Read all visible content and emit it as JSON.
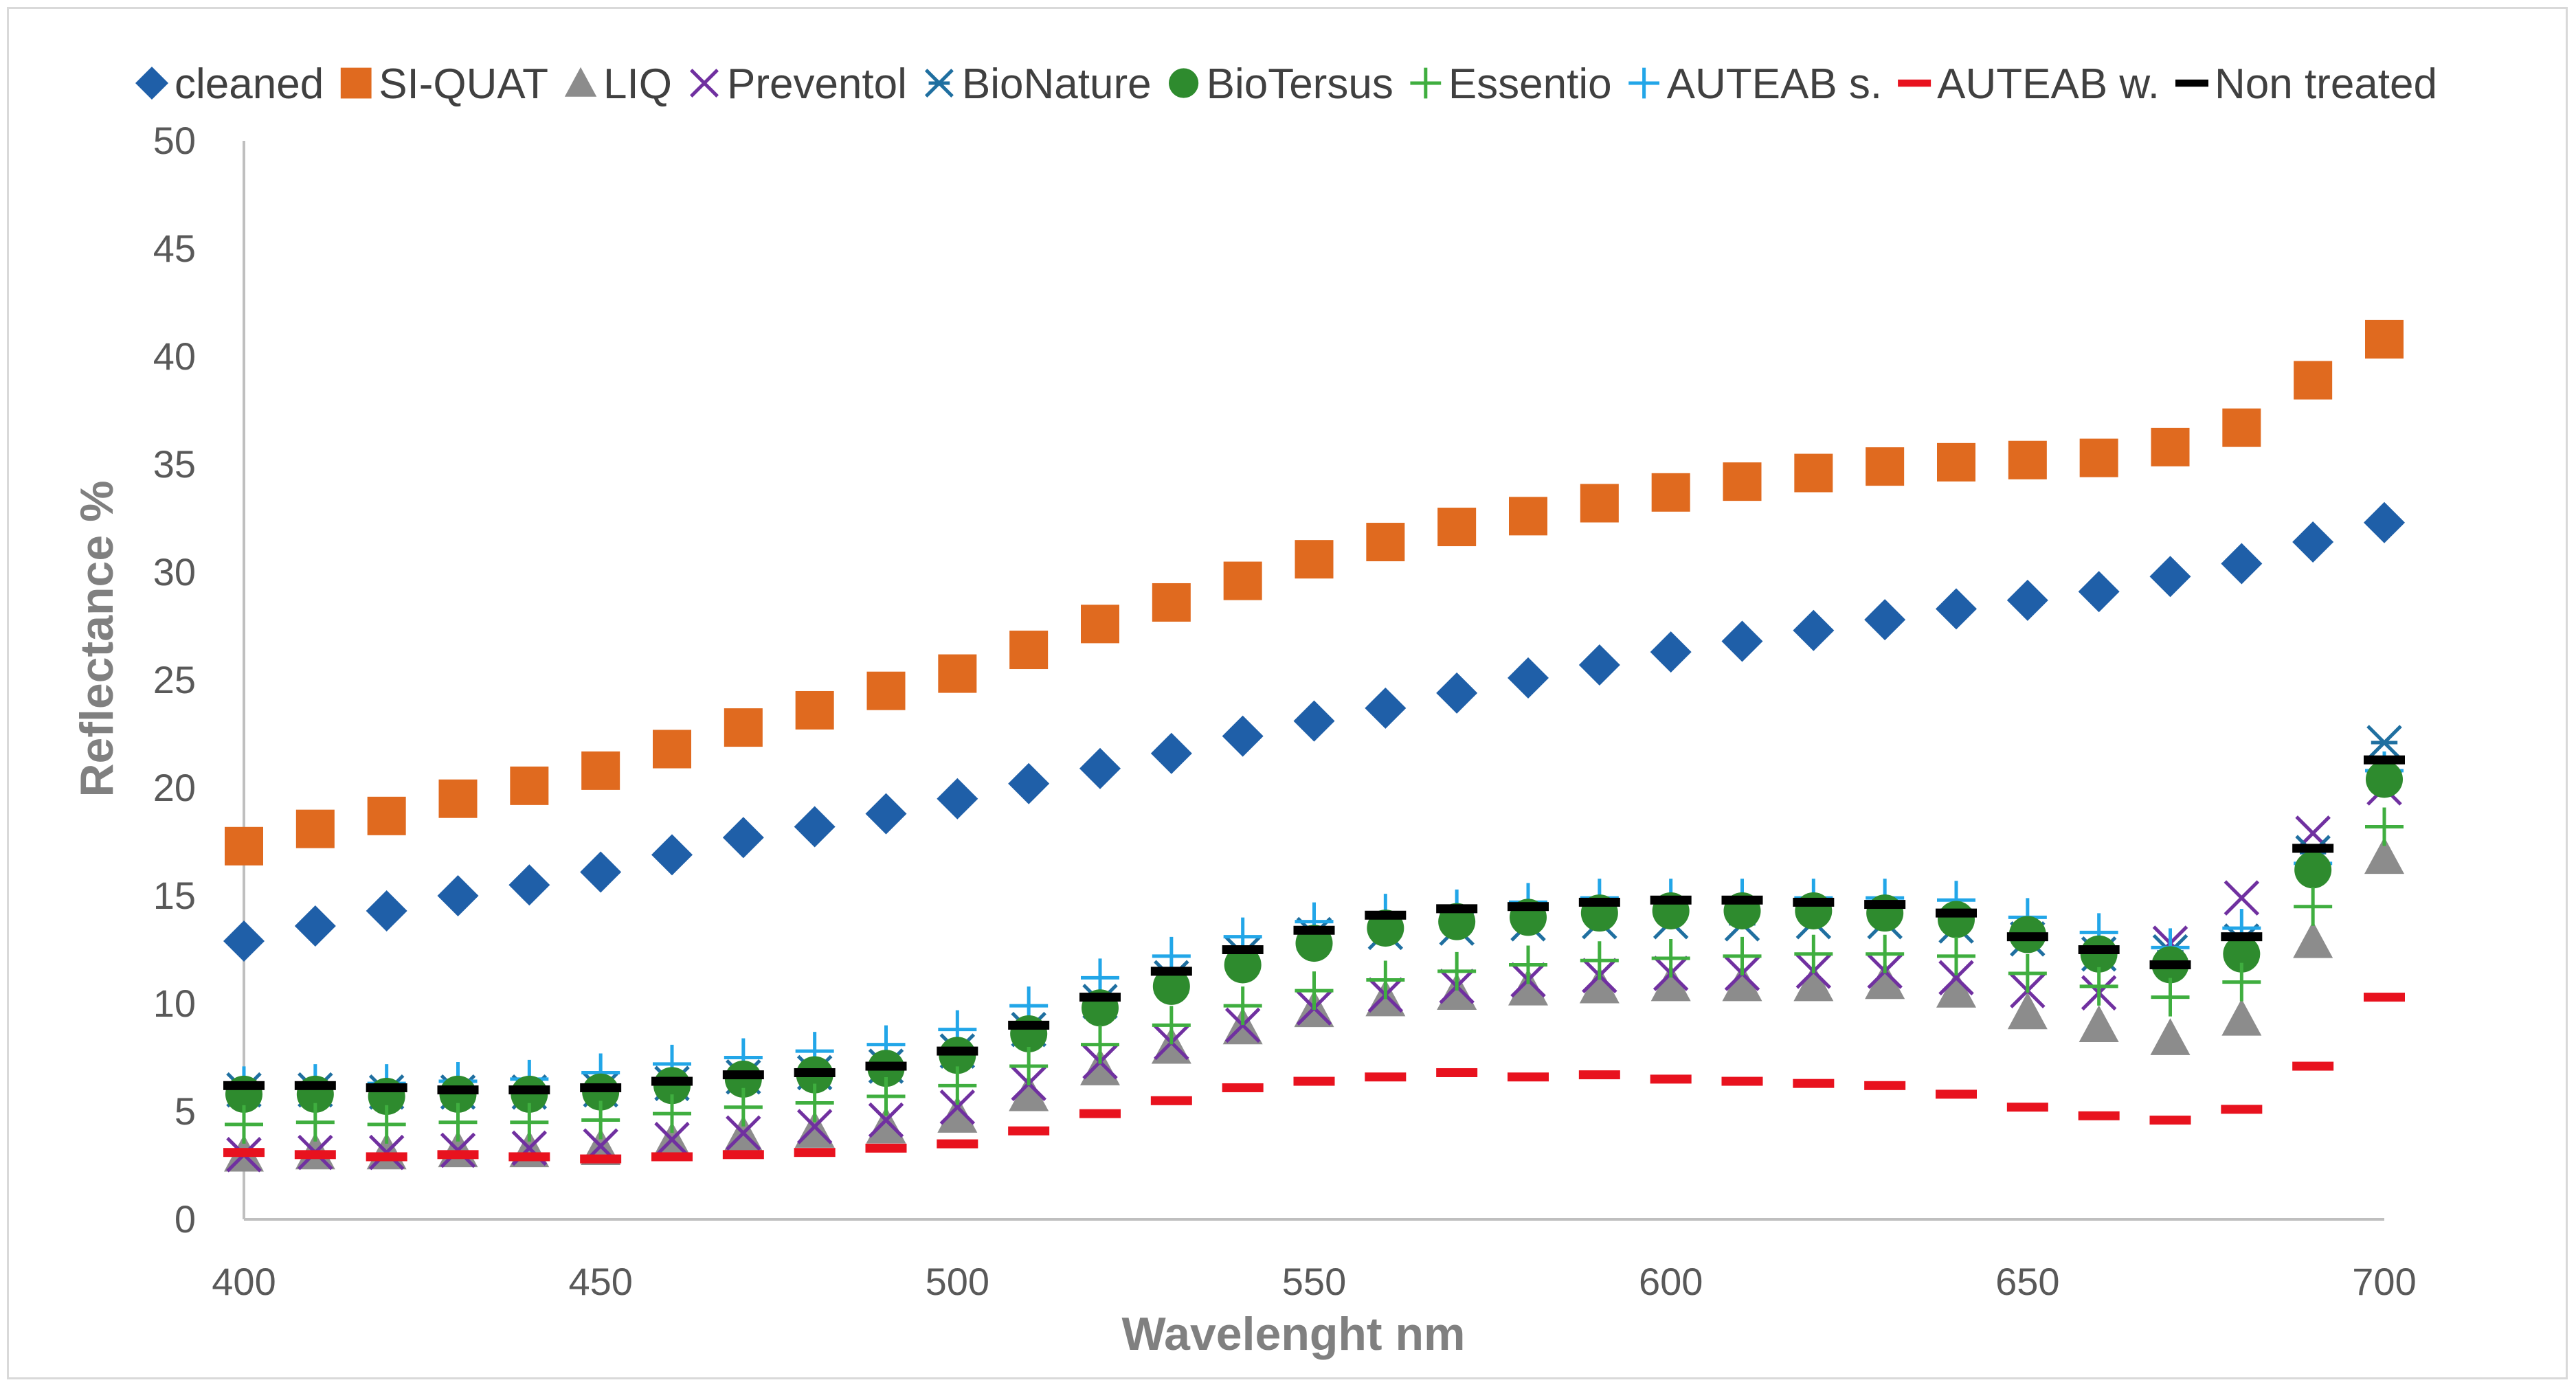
{
  "chart_data": {
    "type": "scatter",
    "title": "",
    "xlabel": "Wavelenght nm",
    "ylabel": "Reflectance %",
    "xlim": [
      400,
      700
    ],
    "ylim": [
      0,
      50
    ],
    "x_ticks": [
      400,
      450,
      500,
      550,
      600,
      650,
      700
    ],
    "y_ticks": [
      0,
      5,
      10,
      15,
      20,
      25,
      30,
      35,
      40,
      45,
      50
    ],
    "grid": false,
    "legend_position": "top",
    "x": [
      400,
      410,
      420,
      430,
      440,
      450,
      460,
      470,
      480,
      490,
      500,
      510,
      520,
      530,
      540,
      550,
      560,
      570,
      580,
      590,
      600,
      610,
      620,
      630,
      640,
      650,
      660,
      670,
      680,
      690,
      700
    ],
    "series": [
      {
        "name": "cleaned",
        "marker": "diamond",
        "color": "#1f5fa8",
        "values": [
          12.9,
          13.6,
          14.3,
          15.0,
          15.5,
          16.1,
          16.9,
          17.7,
          18.2,
          18.8,
          19.5,
          20.2,
          20.9,
          21.6,
          22.4,
          23.1,
          23.7,
          24.4,
          25.1,
          25.7,
          26.3,
          26.8,
          27.3,
          27.8,
          28.3,
          28.7,
          29.1,
          29.8,
          30.4,
          31.4,
          32.3
        ]
      },
      {
        "name": "SI-QUAT",
        "marker": "square",
        "color": "#e06a1f",
        "values": [
          17.3,
          18.1,
          18.7,
          19.5,
          20.1,
          20.8,
          21.8,
          22.8,
          23.6,
          24.5,
          25.3,
          26.4,
          27.6,
          28.6,
          29.6,
          30.6,
          31.4,
          32.1,
          32.6,
          33.2,
          33.7,
          34.2,
          34.6,
          34.9,
          35.1,
          35.2,
          35.3,
          35.8,
          36.7,
          38.9,
          40.8
        ]
      },
      {
        "name": "LIQ",
        "marker": "triangle",
        "color": "#8c8c8c",
        "values": [
          3.0,
          3.1,
          3.1,
          3.2,
          3.2,
          3.3,
          3.6,
          3.9,
          4.1,
          4.3,
          4.8,
          5.8,
          7.0,
          8.0,
          8.9,
          9.7,
          10.2,
          10.5,
          10.7,
          10.8,
          10.9,
          10.9,
          10.9,
          11.0,
          10.6,
          9.6,
          9.0,
          8.4,
          9.3,
          12.9,
          16.8
        ]
      },
      {
        "name": "Preventol",
        "marker": "x",
        "color": "#7030a0",
        "values": [
          3.0,
          3.1,
          3.1,
          3.2,
          3.3,
          3.4,
          3.7,
          4.0,
          4.3,
          4.6,
          5.2,
          6.3,
          7.3,
          8.2,
          9.0,
          9.8,
          10.4,
          10.8,
          11.1,
          11.3,
          11.4,
          11.4,
          11.5,
          11.5,
          11.2,
          10.6,
          10.5,
          12.8,
          14.9,
          17.9,
          20.0
        ]
      },
      {
        "name": "BioNature",
        "marker": "asterisk",
        "color": "#1f6fa0",
        "values": [
          6.0,
          6.0,
          5.9,
          5.9,
          5.9,
          6.0,
          6.3,
          6.6,
          6.8,
          7.1,
          7.8,
          8.8,
          10.1,
          11.2,
          12.3,
          13.2,
          13.3,
          13.5,
          13.7,
          13.8,
          13.8,
          13.7,
          13.8,
          13.8,
          13.6,
          13.0,
          12.3,
          12.4,
          12.9,
          17.0,
          22.1
        ]
      },
      {
        "name": "BioTersus",
        "marker": "circle",
        "color": "#2e8b2e",
        "values": [
          5.8,
          5.8,
          5.7,
          5.8,
          5.8,
          5.9,
          6.2,
          6.5,
          6.7,
          7.0,
          7.6,
          8.6,
          9.8,
          10.8,
          11.8,
          12.8,
          13.5,
          13.8,
          14.0,
          14.2,
          14.3,
          14.3,
          14.3,
          14.2,
          13.9,
          13.2,
          12.3,
          11.8,
          12.3,
          16.2,
          20.4
        ]
      },
      {
        "name": "Essentio",
        "marker": "plus",
        "color": "#3fae3f",
        "values": [
          4.4,
          4.5,
          4.4,
          4.5,
          4.5,
          4.6,
          4.9,
          5.2,
          5.4,
          5.7,
          6.2,
          7.1,
          8.1,
          9.0,
          9.9,
          10.6,
          11.1,
          11.5,
          11.8,
          12.0,
          12.1,
          12.2,
          12.3,
          12.3,
          12.2,
          11.4,
          10.8,
          10.3,
          11.0,
          14.5,
          18.2
        ]
      },
      {
        "name": "AUTEAB s.",
        "marker": "plus",
        "color": "#22a6e8",
        "values": [
          6.2,
          6.3,
          6.3,
          6.4,
          6.5,
          6.8,
          7.2,
          7.5,
          7.8,
          8.1,
          8.8,
          9.9,
          11.2,
          12.2,
          13.1,
          13.8,
          14.2,
          14.4,
          14.7,
          14.9,
          14.9,
          14.9,
          14.9,
          14.9,
          14.8,
          14.0,
          13.3,
          12.6,
          13.5,
          16.5,
          20.8
        ]
      },
      {
        "name": "AUTEAB w.",
        "marker": "dash",
        "color": "#e8121e",
        "values": [
          3.1,
          3.0,
          2.9,
          3.0,
          2.9,
          2.8,
          2.9,
          3.0,
          3.1,
          3.3,
          3.5,
          4.1,
          4.9,
          5.5,
          6.1,
          6.4,
          6.6,
          6.8,
          6.6,
          6.7,
          6.5,
          6.4,
          6.3,
          6.2,
          5.8,
          5.2,
          4.8,
          4.6,
          5.1,
          7.1,
          10.3
        ]
      },
      {
        "name": "Non treated",
        "marker": "dash",
        "color": "#000000",
        "values": [
          6.2,
          6.2,
          6.1,
          6.0,
          6.0,
          6.1,
          6.4,
          6.7,
          6.8,
          7.1,
          7.8,
          9.0,
          10.3,
          11.5,
          12.5,
          13.4,
          14.1,
          14.4,
          14.5,
          14.7,
          14.8,
          14.8,
          14.7,
          14.6,
          14.2,
          13.1,
          12.5,
          11.8,
          13.1,
          17.2,
          21.3
        ]
      }
    ]
  }
}
